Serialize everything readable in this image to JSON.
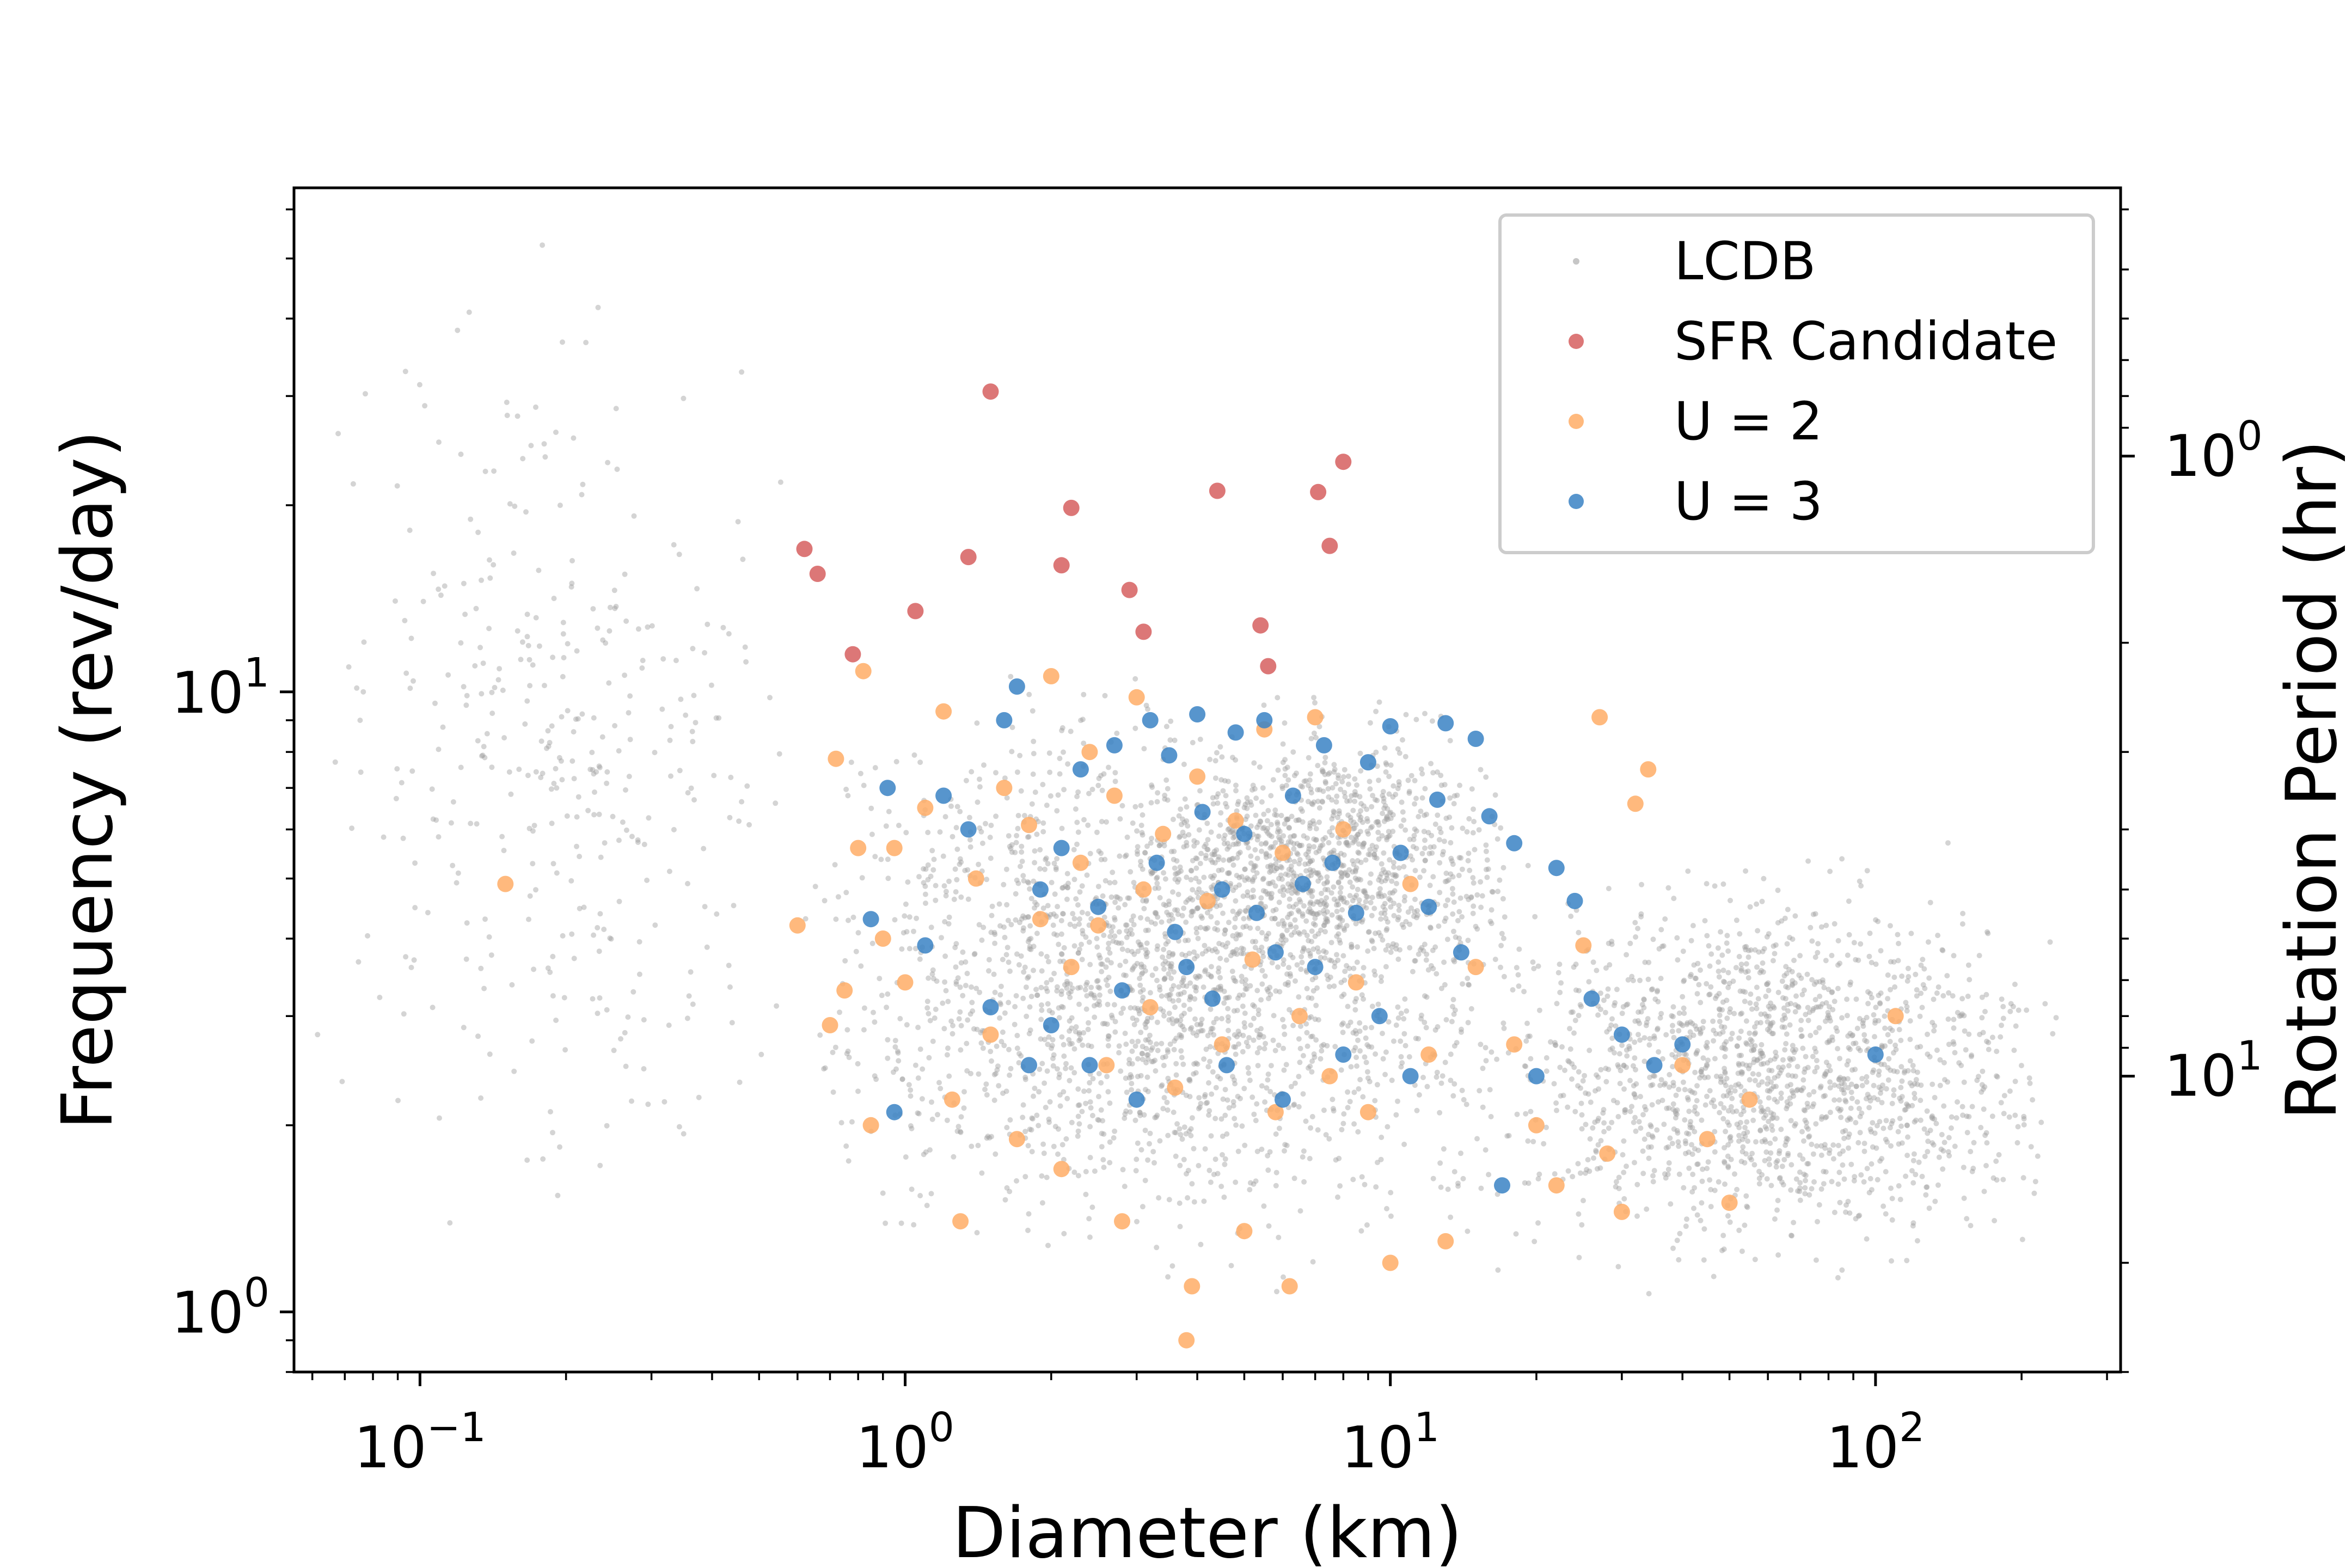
{
  "chart_data": {
    "type": "scatter",
    "xlabel": "Diameter (km)",
    "ylabel": "Frequency (rev/day)",
    "y2label": "Rotation Period (hr)",
    "xscale": "log",
    "yscale": "log",
    "xlim": [
      0.055,
      320
    ],
    "ylim": [
      0.8,
      65
    ],
    "x_ticks": [
      {
        "value": 0.1,
        "base": "10",
        "exp": "−1"
      },
      {
        "value": 1,
        "base": "10",
        "exp": "0"
      },
      {
        "value": 10,
        "base": "10",
        "exp": "1"
      },
      {
        "value": 100,
        "base": "10",
        "exp": "2"
      }
    ],
    "y_ticks": [
      {
        "value": 1,
        "base": "10",
        "exp": "0"
      },
      {
        "value": 10,
        "base": "10",
        "exp": "1"
      }
    ],
    "y2_ticks": [
      {
        "value": 1,
        "base": "10",
        "exp": "0"
      },
      {
        "value": 10,
        "base": "10",
        "exp": "1"
      }
    ],
    "legend_position": "top-right",
    "grid": false,
    "series": [
      {
        "name": "LCDB",
        "color": "#a0a0a0",
        "note": "background cloud of several thousand points; distribution summarized",
        "clusters": [
          {
            "xmin": 0.06,
            "xmax": 0.6,
            "ymin": 1.0,
            "ymax": 62,
            "count": 380
          },
          {
            "xmin": 0.6,
            "xmax": 20,
            "ymin": 1.0,
            "ymax": 12,
            "count": 2200
          },
          {
            "xmin": 3,
            "xmax": 18,
            "ymin": 3.0,
            "ymax": 10,
            "count": 900
          },
          {
            "xmin": 15,
            "xmax": 250,
            "ymin": 1.0,
            "ymax": 6,
            "count": 1600
          }
        ]
      },
      {
        "name": "SFR Candidate",
        "color": "#d65f5f",
        "points": [
          [
            1.5,
            30.5
          ],
          [
            0.62,
            17.0
          ],
          [
            0.66,
            15.5
          ],
          [
            0.78,
            11.5
          ],
          [
            1.05,
            13.5
          ],
          [
            1.35,
            16.5
          ],
          [
            2.1,
            16.0
          ],
          [
            2.2,
            19.8
          ],
          [
            2.9,
            14.6
          ],
          [
            3.1,
            12.5
          ],
          [
            4.4,
            21.1
          ],
          [
            5.4,
            12.8
          ],
          [
            5.6,
            11.0
          ],
          [
            7.1,
            21.0
          ],
          [
            7.5,
            17.2
          ],
          [
            8.0,
            23.5
          ]
        ]
      },
      {
        "name": "U  =  2",
        "color": "#ffad66",
        "points": [
          [
            0.15,
            4.9
          ],
          [
            0.6,
            4.2
          ],
          [
            0.7,
            2.9
          ],
          [
            0.72,
            7.8
          ],
          [
            0.75,
            3.3
          ],
          [
            0.8,
            5.6
          ],
          [
            0.82,
            10.8
          ],
          [
            0.85,
            2.0
          ],
          [
            0.9,
            4.0
          ],
          [
            0.95,
            5.6
          ],
          [
            1.0,
            3.4
          ],
          [
            1.1,
            6.5
          ],
          [
            1.2,
            9.3
          ],
          [
            1.25,
            2.2
          ],
          [
            1.3,
            1.4
          ],
          [
            1.4,
            5.0
          ],
          [
            1.5,
            2.8
          ],
          [
            1.6,
            7.0
          ],
          [
            1.7,
            1.9
          ],
          [
            1.8,
            6.1
          ],
          [
            1.9,
            4.3
          ],
          [
            2.0,
            10.6
          ],
          [
            2.1,
            1.7
          ],
          [
            2.2,
            3.6
          ],
          [
            2.3,
            5.3
          ],
          [
            2.4,
            8.0
          ],
          [
            2.5,
            4.2
          ],
          [
            2.6,
            2.5
          ],
          [
            2.7,
            6.8
          ],
          [
            2.8,
            1.4
          ],
          [
            3.0,
            9.8
          ],
          [
            3.1,
            4.8
          ],
          [
            3.2,
            3.1
          ],
          [
            3.4,
            5.9
          ],
          [
            3.6,
            2.3
          ],
          [
            3.8,
            0.9
          ],
          [
            3.9,
            1.1
          ],
          [
            4.0,
            7.3
          ],
          [
            4.2,
            4.6
          ],
          [
            4.5,
            2.7
          ],
          [
            4.8,
            6.2
          ],
          [
            5.0,
            1.35
          ],
          [
            5.2,
            3.7
          ],
          [
            5.5,
            8.7
          ],
          [
            5.8,
            2.1
          ],
          [
            6.0,
            5.5
          ],
          [
            6.2,
            1.1
          ],
          [
            6.5,
            3.0
          ],
          [
            7.0,
            9.1
          ],
          [
            7.5,
            2.4
          ],
          [
            8.0,
            6.0
          ],
          [
            8.5,
            3.4
          ],
          [
            9.0,
            2.1
          ],
          [
            10.0,
            1.2
          ],
          [
            11.0,
            4.9
          ],
          [
            12.0,
            2.6
          ],
          [
            13.0,
            1.3
          ],
          [
            15.0,
            3.6
          ],
          [
            18.0,
            2.7
          ],
          [
            20.0,
            2.0
          ],
          [
            22.0,
            1.6
          ],
          [
            25.0,
            3.9
          ],
          [
            27.0,
            9.1
          ],
          [
            28.0,
            1.8
          ],
          [
            30.0,
            1.45
          ],
          [
            32.0,
            6.6
          ],
          [
            34.0,
            7.5
          ],
          [
            40.0,
            2.5
          ],
          [
            45.0,
            1.9
          ],
          [
            50.0,
            1.5
          ],
          [
            55.0,
            2.2
          ],
          [
            110.0,
            3.0
          ]
        ]
      },
      {
        "name": "U  =  3",
        "color": "#3a82c4",
        "points": [
          [
            0.85,
            4.3
          ],
          [
            0.92,
            7.0
          ],
          [
            0.95,
            2.1
          ],
          [
            1.1,
            3.9
          ],
          [
            1.2,
            6.8
          ],
          [
            1.35,
            6.0
          ],
          [
            1.5,
            3.1
          ],
          [
            1.6,
            9.0
          ],
          [
            1.7,
            10.2
          ],
          [
            1.8,
            2.5
          ],
          [
            1.9,
            4.8
          ],
          [
            2.0,
            2.9
          ],
          [
            2.1,
            5.6
          ],
          [
            2.3,
            7.5
          ],
          [
            2.4,
            2.5
          ],
          [
            2.5,
            4.5
          ],
          [
            2.7,
            8.2
          ],
          [
            2.8,
            3.3
          ],
          [
            3.0,
            2.2
          ],
          [
            3.2,
            9.0
          ],
          [
            3.3,
            5.3
          ],
          [
            3.5,
            7.9
          ],
          [
            3.6,
            4.1
          ],
          [
            3.8,
            3.6
          ],
          [
            4.0,
            9.2
          ],
          [
            4.1,
            6.4
          ],
          [
            4.3,
            3.2
          ],
          [
            4.5,
            4.8
          ],
          [
            4.6,
            2.5
          ],
          [
            4.8,
            8.6
          ],
          [
            5.0,
            5.9
          ],
          [
            5.3,
            4.4
          ],
          [
            5.5,
            9.0
          ],
          [
            5.8,
            3.8
          ],
          [
            6.0,
            2.2
          ],
          [
            6.3,
            6.8
          ],
          [
            6.6,
            4.9
          ],
          [
            7.0,
            3.6
          ],
          [
            7.3,
            8.2
          ],
          [
            7.6,
            5.3
          ],
          [
            8.0,
            2.6
          ],
          [
            8.5,
            4.4
          ],
          [
            9.0,
            7.7
          ],
          [
            9.5,
            3.0
          ],
          [
            10.0,
            8.8
          ],
          [
            10.5,
            5.5
          ],
          [
            11.0,
            2.4
          ],
          [
            12.0,
            4.5
          ],
          [
            12.5,
            6.7
          ],
          [
            13.0,
            8.9
          ],
          [
            14.0,
            3.8
          ],
          [
            15.0,
            8.4
          ],
          [
            16.0,
            6.3
          ],
          [
            17.0,
            1.6
          ],
          [
            18.0,
            5.7
          ],
          [
            20.0,
            2.4
          ],
          [
            22.0,
            5.2
          ],
          [
            24.0,
            4.6
          ],
          [
            26.0,
            3.2
          ],
          [
            30.0,
            2.8
          ],
          [
            35.0,
            2.5
          ],
          [
            40.0,
            2.7
          ],
          [
            100.0,
            2.6
          ]
        ]
      }
    ]
  }
}
